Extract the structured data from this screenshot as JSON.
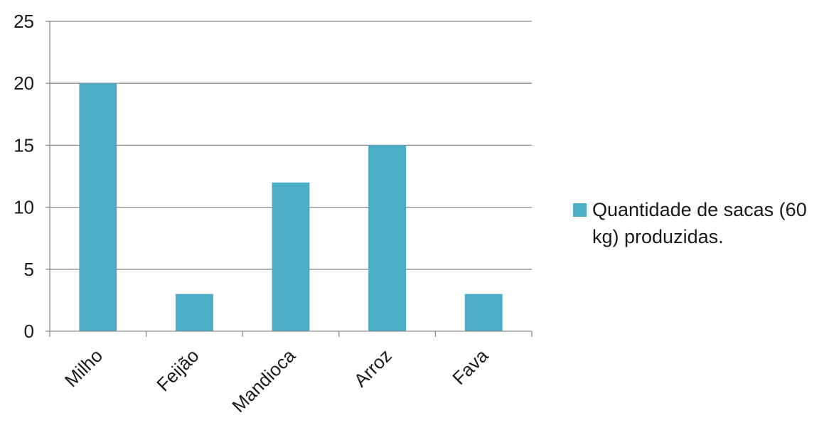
{
  "chart_data": {
    "type": "bar",
    "categories": [
      "Milho",
      "Feijão",
      "Mandioca",
      "Arroz",
      "Fava"
    ],
    "series": [
      {
        "name": "Quantidade de sacas (60 kg) produzidas.",
        "values": [
          20,
          3,
          12,
          15,
          3
        ],
        "color": "#4bacc6"
      }
    ],
    "ylim": [
      0,
      25
    ],
    "yticks": [
      "0",
      "5",
      "10",
      "15",
      "20",
      "25"
    ],
    "grid": true,
    "legend_position": "right",
    "title": "",
    "xlabel": "",
    "ylabel": ""
  }
}
